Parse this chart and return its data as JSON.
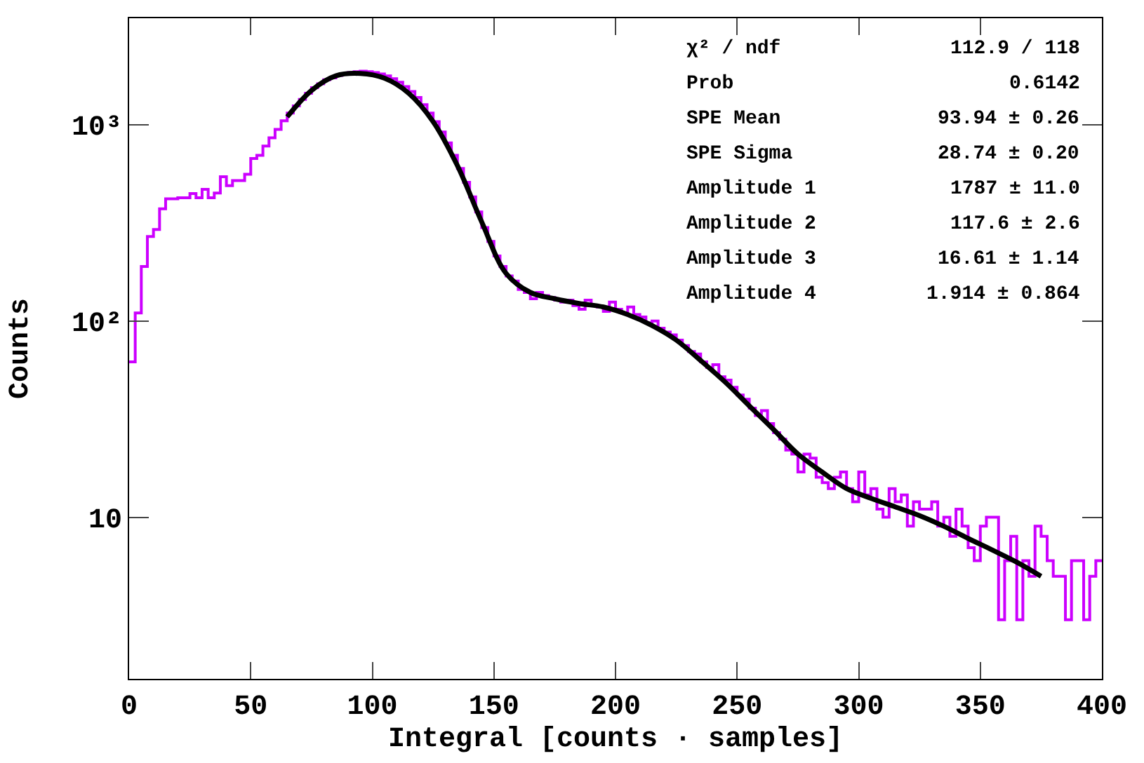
{
  "chart_data": {
    "type": "histogram",
    "xlabel": "Integral [counts · samples]",
    "ylabel": "Counts",
    "bins": [
      0,
      2.5,
      5,
      7.5,
      10,
      12.5,
      15,
      17.5,
      20,
      22.5,
      25,
      27.5,
      30,
      32.5,
      35,
      37.5,
      40,
      42.5,
      45,
      47.5,
      50,
      52.5,
      55,
      57.5,
      60,
      62.5,
      65,
      67.5,
      70,
      72.5,
      75,
      77.5,
      80,
      82.5,
      85,
      87.5,
      90,
      92.5,
      95,
      97.5,
      100,
      102.5,
      105,
      107.5,
      110,
      112.5,
      115,
      117.5,
      120,
      122.5,
      125,
      127.5,
      130,
      132.5,
      135,
      137.5,
      140,
      142.5,
      145,
      147.5,
      150,
      152.5,
      155,
      157.5,
      160,
      162.5,
      165,
      167.5,
      170,
      172.5,
      175,
      177.5,
      180,
      182.5,
      185,
      187.5,
      190,
      192.5,
      195,
      197.5,
      200,
      202.5,
      205,
      207.5,
      210,
      212.5,
      215,
      217.5,
      220,
      222.5,
      225,
      227.5,
      230,
      232.5,
      235,
      237.5,
      240,
      242.5,
      245,
      247.5,
      250,
      252.5,
      255,
      257.5,
      260,
      262.5,
      265,
      267.5,
      270,
      272.5,
      275,
      277.5,
      280,
      282.5,
      285,
      287.5,
      290,
      292.5,
      295,
      297.5,
      300,
      302.5,
      305,
      307.5,
      310,
      312.5,
      315,
      317.5,
      320,
      322.5,
      325,
      327.5,
      330,
      332.5,
      335,
      337.5,
      340,
      342.5,
      345,
      347.5,
      350,
      352.5,
      355,
      357.5,
      360,
      362.5,
      365,
      367.5,
      370,
      372.5,
      375,
      377.5,
      380,
      382.5,
      385,
      387.5,
      390,
      392.5,
      395,
      397.5,
      400
    ],
    "series": [
      {
        "color": "#cc00ff",
        "values": [
          62,
          110,
          190,
          270,
          293,
          374,
          420,
          420,
          425,
          425,
          447,
          425,
          470,
          425,
          450,
          545,
          490,
          520,
          520,
          560,
          675,
          700,
          780,
          860,
          950,
          1050,
          1150,
          1250,
          1350,
          1450,
          1550,
          1620,
          1700,
          1740,
          1790,
          1820,
          1850,
          1870,
          1880,
          1870,
          1850,
          1820,
          1780,
          1720,
          1650,
          1570,
          1480,
          1380,
          1270,
          1150,
          1040,
          920,
          810,
          700,
          600,
          510,
          430,
          360,
          300,
          255,
          215,
          190,
          170,
          160,
          145,
          140,
          130,
          140,
          135,
          132,
          128,
          125,
          128,
          120,
          115,
          128,
          120,
          118,
          112,
          125,
          115,
          110,
          118,
          108,
          105,
          98,
          100,
          92,
          88,
          85,
          80,
          75,
          70,
          68,
          62,
          58,
          60,
          52,
          50,
          46,
          42,
          40,
          36,
          33,
          35,
          30,
          27,
          25,
          22,
          21,
          17,
          21,
          20,
          16,
          15,
          14,
          16,
          17,
          14,
          12,
          17,
          13,
          14,
          11,
          10,
          14,
          12,
          13,
          9,
          12,
          11,
          11,
          12,
          9,
          10,
          8,
          11,
          9,
          7,
          6,
          9,
          10,
          10,
          3,
          6,
          8,
          3,
          6,
          5,
          9,
          8,
          6,
          5,
          5,
          3,
          6,
          6,
          3,
          5,
          6
        ]
      },
      {
        "type": "line",
        "color": "#000000",
        "x": [
          65,
          75,
          85,
          95,
          105,
          115,
          125,
          135,
          145,
          155,
          165,
          175,
          185,
          195,
          205,
          215,
          225,
          235,
          245,
          255,
          265,
          275,
          285,
          295,
          305,
          315,
          325,
          335,
          345,
          355,
          365,
          375
        ],
        "values": [
          1100,
          1500,
          1780,
          1830,
          1730,
          1450,
          1040,
          620,
          320,
          175,
          140,
          130,
          123,
          118,
          108,
          95,
          80,
          63,
          49,
          37,
          28,
          21,
          17,
          14,
          12.5,
          11.3,
          10.2,
          9,
          7.8,
          6.8,
          5.9,
          5.0
        ]
      }
    ],
    "xlim": [
      0,
      400
    ],
    "xticks": [
      0,
      50,
      100,
      150,
      200,
      250,
      300,
      350,
      400
    ],
    "ylim": [
      1.5,
      3500
    ],
    "log": true,
    "yticks": [
      {
        "value": 10,
        "label": "10"
      },
      {
        "value": 100,
        "label": "10²"
      },
      {
        "value": 1000,
        "label": "10³"
      }
    ],
    "annotations": [
      "χ² / ndf",
      "112.9 / 118",
      "Prob",
      "0.6142",
      "SPE Mean",
      "93.94 ± 0.26",
      "SPE Sigma",
      "28.74 ± 0.20",
      "Amplitude 1",
      "1787 ± 11.0",
      "Amplitude 2",
      "117.6 ± 2.6",
      "Amplitude 3",
      "16.61 ± 1.14",
      "Amplitude 4",
      "1.914 ± 0.864"
    ]
  }
}
